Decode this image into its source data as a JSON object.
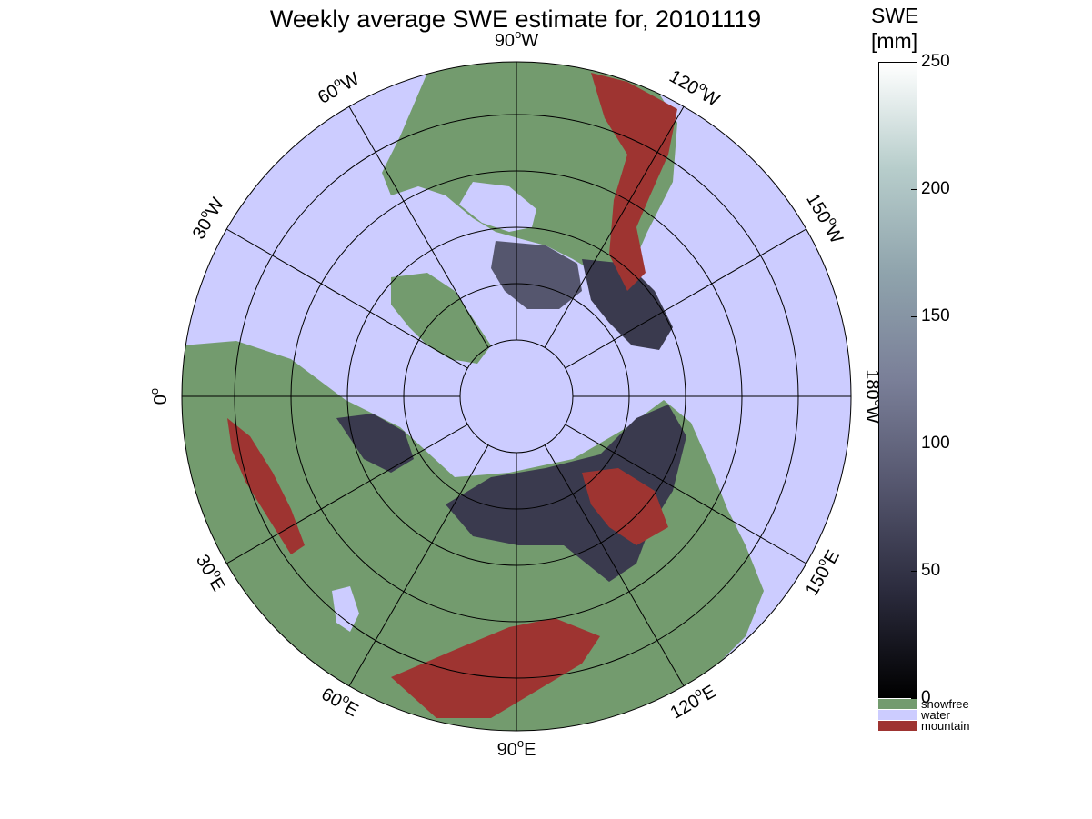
{
  "title": "Weekly average SWE estimate for, 20101119",
  "colorbar": {
    "title_line1": "SWE",
    "title_line2": "[mm]",
    "min": 0,
    "max": 250,
    "ticks": [
      0,
      50,
      100,
      150,
      200,
      250
    ],
    "gradient_colors": [
      "#000000",
      "#2b2b3d",
      "#55566e",
      "#7a7f98",
      "#8fa3ac",
      "#b7cdcb",
      "#ffffff"
    ],
    "categories": [
      {
        "label": "snowfree",
        "color": "#739b6e"
      },
      {
        "label": "water",
        "color": "#ccccff"
      },
      {
        "label": "mountain",
        "color": "#9e3431"
      }
    ]
  },
  "map": {
    "projection": "north-polar-stereographic",
    "meridian_labels": [
      {
        "deg": 90,
        "hemi": "W"
      },
      {
        "deg": 120,
        "hemi": "W"
      },
      {
        "deg": 150,
        "hemi": "W"
      },
      {
        "deg": 180,
        "hemi": "W"
      },
      {
        "deg": 150,
        "hemi": "E"
      },
      {
        "deg": 120,
        "hemi": "E"
      },
      {
        "deg": 90,
        "hemi": "E"
      },
      {
        "deg": 60,
        "hemi": "E"
      },
      {
        "deg": 30,
        "hemi": "E"
      },
      {
        "deg": 0,
        "hemi": ""
      },
      {
        "deg": 30,
        "hemi": "W"
      },
      {
        "deg": 60,
        "hemi": "W"
      }
    ],
    "colors": {
      "ocean": "#ccccff",
      "land": "#739b6e",
      "mountain": "#9e3431",
      "snow_shallow": "#3a3a4e",
      "snow_mid": "#55566e",
      "graticule": "#000000"
    }
  }
}
